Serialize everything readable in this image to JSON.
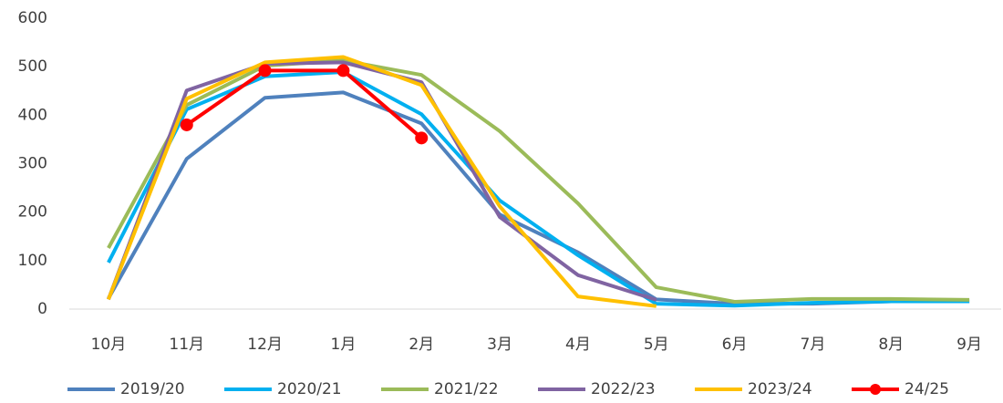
{
  "chart_data": {
    "type": "line",
    "categories": [
      "10月",
      "11月",
      "12月",
      "1月",
      "2月",
      "3月",
      "4月",
      "5月",
      "6月",
      "7月",
      "8月",
      "9月"
    ],
    "series": [
      {
        "name": "2019/20",
        "color": "#4f81bd",
        "values": [
          22,
          310,
          436,
          447,
          383,
          195,
          117,
          20,
          11,
          11,
          16,
          16
        ]
      },
      {
        "name": "2020/21",
        "color": "#00b0f0",
        "values": [
          96,
          412,
          480,
          489,
          402,
          224,
          111,
          11,
          7,
          13,
          16,
          16
        ]
      },
      {
        "name": "2021/22",
        "color": "#9bbb59",
        "values": [
          126,
          421,
          502,
          513,
          483,
          367,
          218,
          45,
          15,
          21,
          21,
          19
        ]
      },
      {
        "name": "2022/23",
        "color": "#8064a2",
        "values": [
          20,
          451,
          506,
          509,
          468,
          190,
          70,
          19,
          null,
          null,
          null,
          null
        ]
      },
      {
        "name": "2023/24",
        "color": "#ffc000",
        "values": [
          20,
          434,
          509,
          520,
          462,
          212,
          26,
          6,
          null,
          null,
          null,
          null
        ]
      },
      {
        "name": "24/25",
        "color": "#ff0000",
        "markers": true,
        "values": [
          null,
          380,
          492,
          492,
          353,
          null,
          null,
          null,
          null,
          null,
          null,
          null
        ]
      }
    ],
    "ylim": [
      0,
      600
    ],
    "yticks": [
      0,
      100,
      200,
      300,
      400,
      500,
      600
    ],
    "legend": "bottom"
  }
}
